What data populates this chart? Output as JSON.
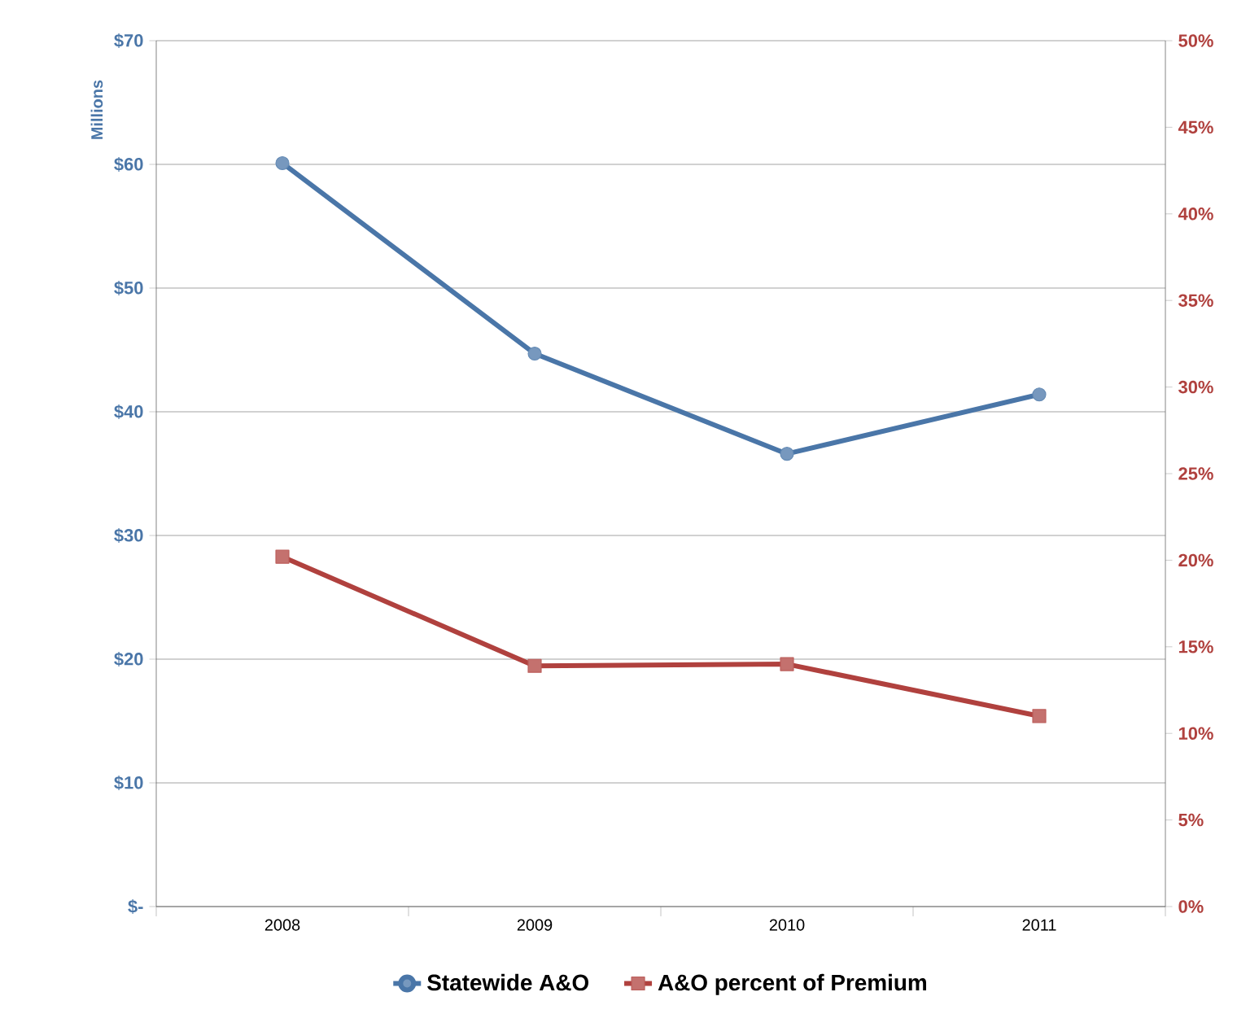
{
  "chart_data": {
    "type": "line",
    "categories": [
      "2008",
      "2009",
      "2010",
      "2011"
    ],
    "ylabel": "Millions",
    "ylim": [
      0,
      70
    ],
    "yticks": [
      {
        "value": 0,
        "label": "$-"
      },
      {
        "value": 10,
        "label": "$10"
      },
      {
        "value": 20,
        "label": "$20"
      },
      {
        "value": 30,
        "label": "$30"
      },
      {
        "value": 40,
        "label": "$40"
      },
      {
        "value": 50,
        "label": "$50"
      },
      {
        "value": 60,
        "label": "$60"
      },
      {
        "value": 70,
        "label": "$70"
      }
    ],
    "y2lim": [
      0,
      50
    ],
    "y2ticks": [
      {
        "value": 0,
        "label": "0%"
      },
      {
        "value": 5,
        "label": "5%"
      },
      {
        "value": 10,
        "label": "10%"
      },
      {
        "value": 15,
        "label": "15%"
      },
      {
        "value": 20,
        "label": "20%"
      },
      {
        "value": 25,
        "label": "25%"
      },
      {
        "value": 30,
        "label": "30%"
      },
      {
        "value": 35,
        "label": "35%"
      },
      {
        "value": 40,
        "label": "40%"
      },
      {
        "value": 45,
        "label": "45%"
      },
      {
        "value": 50,
        "label": "50%"
      }
    ],
    "grid": "y",
    "legend": "bottom",
    "series": [
      {
        "name": "Statewide A&O",
        "color": "#4a76a8",
        "marker": "circle",
        "values": [
          60.1,
          44.7,
          36.6,
          41.4
        ]
      },
      {
        "name": "A&O percent of Premium",
        "color": "#b0413e",
        "marker": "square",
        "axis": "y2",
        "values": [
          20.2,
          13.9,
          14.0,
          11.0
        ]
      }
    ]
  }
}
